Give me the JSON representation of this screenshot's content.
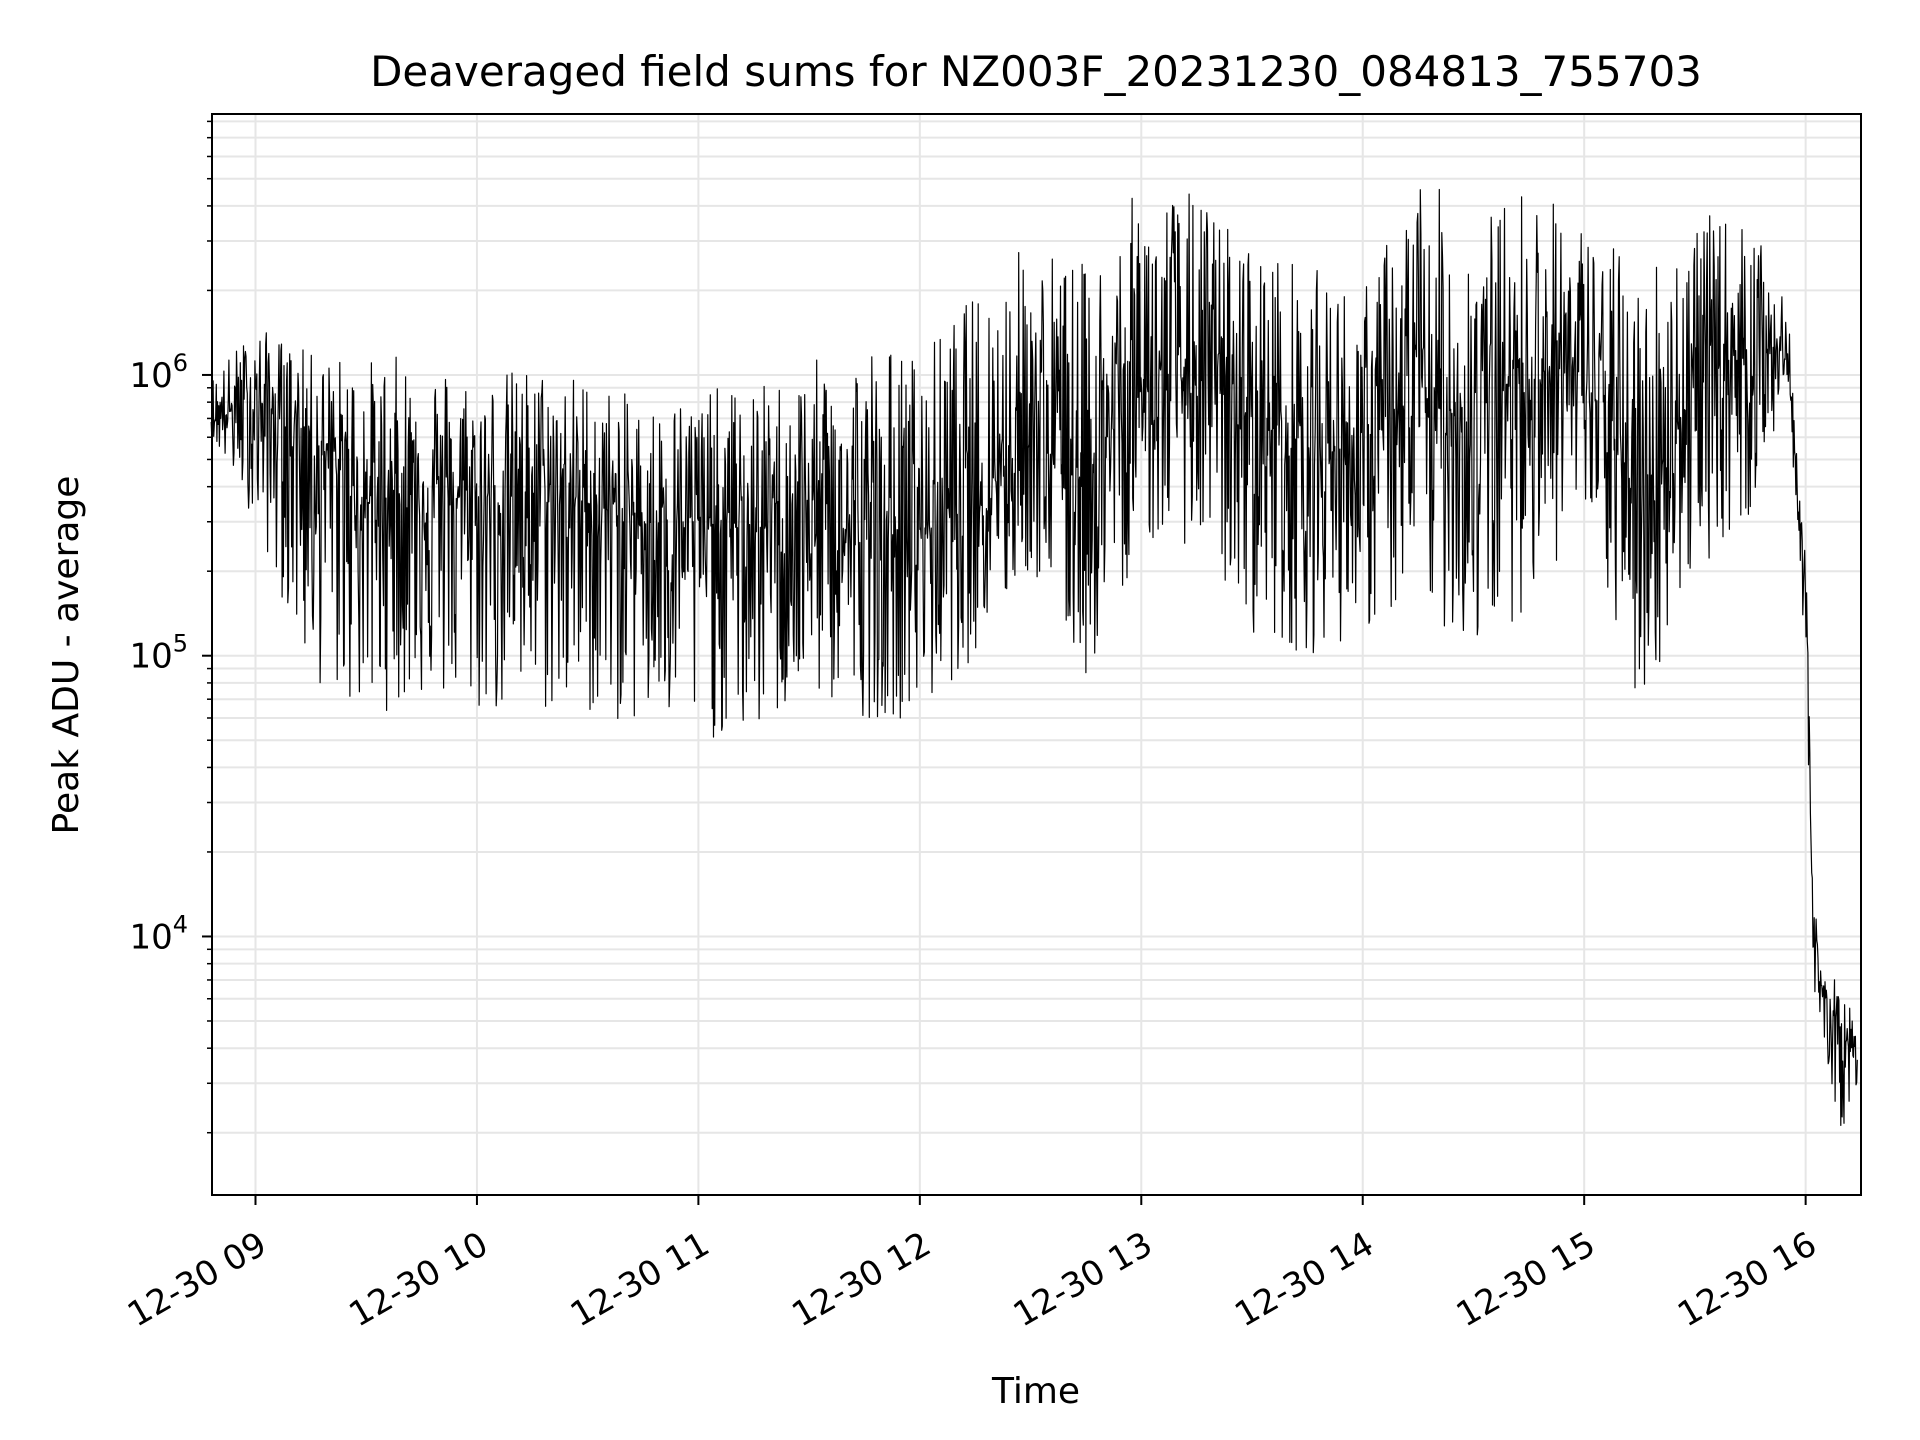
{
  "chart_data": {
    "type": "line",
    "title": "Deaveraged field sums for NZ003F_20231230_084813_755703",
    "xlabel": "Time",
    "ylabel": "Peak ADU - average",
    "y_scale": "log",
    "ylim": [
      1200,
      8500000
    ],
    "xlim": [
      "2023-12-30 08:48:13",
      "2023-12-30 16:15:00"
    ],
    "x_ticks": [
      {
        "time": "2023-12-30 09:00",
        "label": "12-30 09"
      },
      {
        "time": "2023-12-30 10:00",
        "label": "12-30 10"
      },
      {
        "time": "2023-12-30 11:00",
        "label": "12-30 11"
      },
      {
        "time": "2023-12-30 12:00",
        "label": "12-30 12"
      },
      {
        "time": "2023-12-30 13:00",
        "label": "12-30 13"
      },
      {
        "time": "2023-12-30 14:00",
        "label": "12-30 14"
      },
      {
        "time": "2023-12-30 15:00",
        "label": "12-30 15"
      },
      {
        "time": "2023-12-30 16:00",
        "label": "12-30 16"
      }
    ],
    "y_ticks": [
      {
        "value": 10000,
        "base": "10",
        "exp": "4"
      },
      {
        "value": 100000,
        "base": "10",
        "exp": "5"
      },
      {
        "value": 1000000,
        "base": "10",
        "exp": "6"
      }
    ],
    "grid": true,
    "line_color": "#000000",
    "grid_color": "#e6e6e6",
    "series": [
      {
        "x": [
          "2023-12-30 08:48",
          "2023-12-30 09:00",
          "2023-12-30 09:15",
          "2023-12-30 09:30",
          "2023-12-30 09:45",
          "2023-12-30 10:00",
          "2023-12-30 10:15",
          "2023-12-30 10:30",
          "2023-12-30 10:45",
          "2023-12-30 11:00",
          "2023-12-30 11:15",
          "2023-12-30 11:30",
          "2023-12-30 11:45",
          "2023-12-30 12:00",
          "2023-12-30 12:15",
          "2023-12-30 12:30",
          "2023-12-30 12:45",
          "2023-12-30 13:00",
          "2023-12-30 13:15",
          "2023-12-30 13:30",
          "2023-12-30 13:45",
          "2023-12-30 14:00",
          "2023-12-30 14:15",
          "2023-12-30 14:30",
          "2023-12-30 14:45",
          "2023-12-30 15:00",
          "2023-12-30 15:15",
          "2023-12-30 15:30",
          "2023-12-30 15:45",
          "2023-12-30 15:55",
          "2023-12-30 16:00",
          "2023-12-30 16:02",
          "2023-12-30 16:05",
          "2023-12-30 16:10",
          "2023-12-30 16:14"
        ],
        "y": [
          700000,
          800000,
          600000,
          350000,
          400000,
          350000,
          380000,
          350000,
          300000,
          300000,
          280000,
          320000,
          250000,
          280000,
          400000,
          600000,
          450000,
          900000,
          1000000,
          700000,
          550000,
          550000,
          800000,
          700000,
          1100000,
          1000000,
          350000,
          900000,
          1300000,
          1200000,
          180000,
          10000,
          6000,
          4500,
          3500
        ],
        "low": [
          600000,
          300000,
          80000,
          60000,
          70000,
          60000,
          60000,
          60000,
          55000,
          50000,
          50000,
          70000,
          60000,
          60000,
          100000,
          200000,
          80000,
          250000,
          250000,
          120000,
          100000,
          120000,
          150000,
          100000,
          150000,
          300000,
          60000,
          200000,
          300000,
          900000,
          100000,
          6000,
          3500,
          2000,
          3000
        ],
        "high": [
          1000000,
          1500000,
          1200000,
          1150000,
          1200000,
          1000000,
          1100000,
          1000000,
          800000,
          900000,
          900000,
          1100000,
          1400000,
          1200000,
          2000000,
          3200000,
          2500000,
          4800000,
          4500000,
          3000000,
          2500000,
          2000000,
          5500000,
          3500000,
          5000000,
          3500000,
          2500000,
          3800000,
          3500000,
          1800000,
          250000,
          14000,
          8000,
          6500,
          5000
        ]
      }
    ]
  }
}
